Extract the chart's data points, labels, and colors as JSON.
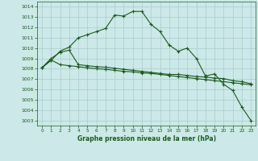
{
  "title": "Graphe pression niveau de la mer (hPa)",
  "bg_color": "#cce8e8",
  "grid_color": "#aacccc",
  "line_color": "#1a5c1a",
  "x_ticks": [
    0,
    1,
    2,
    3,
    4,
    5,
    6,
    7,
    8,
    9,
    10,
    11,
    12,
    13,
    14,
    15,
    16,
    17,
    18,
    19,
    20,
    21,
    22,
    23
  ],
  "ylim": [
    1003,
    1014
  ],
  "yticks": [
    1003,
    1004,
    1005,
    1006,
    1007,
    1008,
    1009,
    1010,
    1011,
    1012,
    1013,
    1014
  ],
  "series1": [
    1008.1,
    1008.8,
    1009.7,
    1010.1,
    1011.0,
    1011.3,
    1011.6,
    1011.9,
    1013.2,
    1013.1,
    1013.55,
    1013.55,
    1012.3,
    1011.6,
    1010.3,
    1009.7,
    1010.0,
    1009.0,
    1007.3,
    1007.5,
    1006.5,
    1005.9,
    1004.3,
    1003.0
  ],
  "series2": [
    1008.1,
    1009.0,
    1009.6,
    1009.8,
    1008.4,
    1008.3,
    1008.2,
    1008.15,
    1008.05,
    1007.95,
    1007.85,
    1007.75,
    1007.65,
    1007.55,
    1007.45,
    1007.45,
    1007.35,
    1007.25,
    1007.2,
    1007.1,
    1007.05,
    1006.85,
    1006.75,
    1006.55
  ],
  "series3": [
    1008.1,
    1008.85,
    1008.4,
    1008.3,
    1008.2,
    1008.1,
    1008.0,
    1007.95,
    1007.85,
    1007.75,
    1007.7,
    1007.6,
    1007.55,
    1007.45,
    1007.35,
    1007.25,
    1007.15,
    1007.05,
    1006.95,
    1006.85,
    1006.75,
    1006.65,
    1006.55,
    1006.45
  ]
}
